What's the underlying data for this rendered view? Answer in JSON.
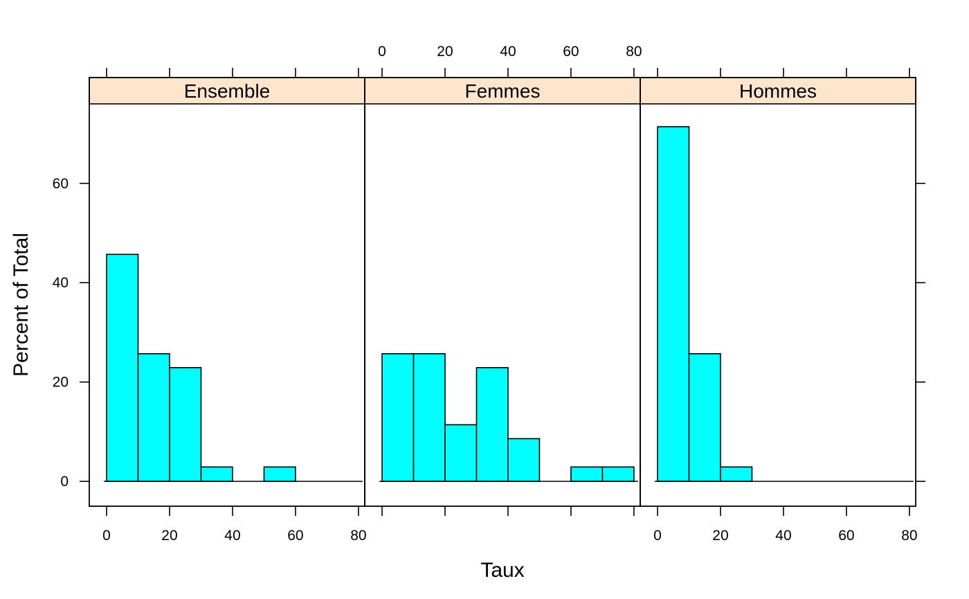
{
  "chart_data": {
    "type": "bar",
    "xlabel": "Taux",
    "ylabel": "Percent of Total",
    "xlim": [
      -5.5,
      82
    ],
    "ylim": [
      -5,
      76
    ],
    "x_ticks": [
      0,
      20,
      40,
      60,
      80
    ],
    "y_ticks": [
      0,
      20,
      40,
      60
    ],
    "bin_width": 10,
    "colors": {
      "bar": "#00ffff",
      "strip": "#ffe5cc",
      "stroke": "#000000"
    },
    "panels": [
      {
        "name": "Ensemble",
        "bins": [
          {
            "x0": 0,
            "x1": 10,
            "value": 45.7
          },
          {
            "x0": 10,
            "x1": 20,
            "value": 25.7
          },
          {
            "x0": 20,
            "x1": 30,
            "value": 22.9
          },
          {
            "x0": 30,
            "x1": 40,
            "value": 2.9
          },
          {
            "x0": 40,
            "x1": 50,
            "value": 0
          },
          {
            "x0": 50,
            "x1": 60,
            "value": 2.9
          },
          {
            "x0": 60,
            "x1": 70,
            "value": 0
          },
          {
            "x0": 70,
            "x1": 80,
            "value": 0
          }
        ]
      },
      {
        "name": "Femmes",
        "bins": [
          {
            "x0": 0,
            "x1": 10,
            "value": 25.7
          },
          {
            "x0": 10,
            "x1": 20,
            "value": 25.7
          },
          {
            "x0": 20,
            "x1": 30,
            "value": 11.4
          },
          {
            "x0": 30,
            "x1": 40,
            "value": 22.9
          },
          {
            "x0": 40,
            "x1": 50,
            "value": 8.6
          },
          {
            "x0": 50,
            "x1": 60,
            "value": 0
          },
          {
            "x0": 60,
            "x1": 70,
            "value": 2.9
          },
          {
            "x0": 70,
            "x1": 80,
            "value": 2.9
          }
        ]
      },
      {
        "name": "Hommes",
        "bins": [
          {
            "x0": 0,
            "x1": 10,
            "value": 71.4
          },
          {
            "x0": 10,
            "x1": 20,
            "value": 25.7
          },
          {
            "x0": 20,
            "x1": 30,
            "value": 2.9
          },
          {
            "x0": 30,
            "x1": 40,
            "value": 0
          },
          {
            "x0": 40,
            "x1": 50,
            "value": 0
          },
          {
            "x0": 50,
            "x1": 60,
            "value": 0
          },
          {
            "x0": 60,
            "x1": 70,
            "value": 0
          },
          {
            "x0": 70,
            "x1": 80,
            "value": 0
          }
        ]
      }
    ]
  }
}
